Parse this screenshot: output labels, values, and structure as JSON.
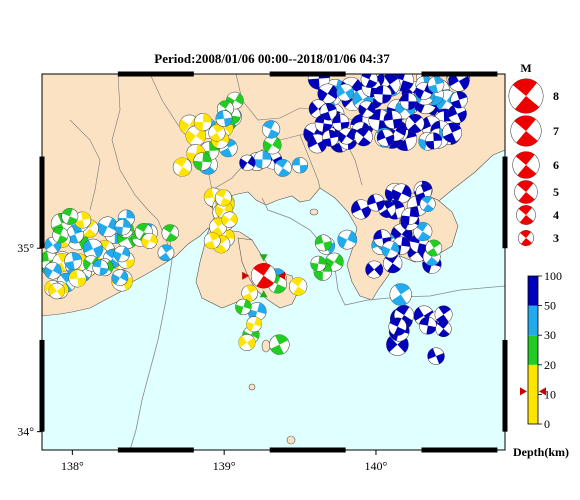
{
  "map": {
    "title": "Period:2008/01/06 00:00--2018/01/06 04:37",
    "lon_range": [
      137.8,
      140.85
    ],
    "lat_range": [
      33.9,
      35.95
    ],
    "lon_ticks": [
      {
        "value": 138,
        "label": "138°"
      },
      {
        "value": 139,
        "label": "139°"
      },
      {
        "value": 140,
        "label": "140°"
      }
    ],
    "lat_ticks": [
      {
        "value": 35,
        "label": "35°"
      },
      {
        "value": 34,
        "label": "34°"
      }
    ],
    "land_color": "#fbe2c3",
    "sea_color": "#e0ffff"
  },
  "magnitude_legend": {
    "heading": "M",
    "items": [
      {
        "label": "8",
        "size": 8
      },
      {
        "label": "7",
        "size": 7
      },
      {
        "label": "6",
        "size": 6
      },
      {
        "label": "5",
        "size": 5
      },
      {
        "label": "4",
        "size": 4
      },
      {
        "label": "3",
        "size": 3
      }
    ]
  },
  "depth_scale": {
    "title": "Depth(km)",
    "ticks": [
      {
        "value": 100,
        "label": "100"
      },
      {
        "value": 50,
        "label": "50"
      },
      {
        "value": 30,
        "label": "30"
      },
      {
        "value": 20,
        "label": "20"
      },
      {
        "value": 10,
        "label": "10"
      },
      {
        "value": 0,
        "label": "0"
      }
    ],
    "bands": [
      {
        "from": 0,
        "to": 10,
        "color": "#ffe400"
      },
      {
        "from": 10,
        "to": 20,
        "color": "#ffe400"
      },
      {
        "from": 20,
        "to": 30,
        "color": "#22cc22"
      },
      {
        "from": 30,
        "to": 50,
        "color": "#22aaee"
      },
      {
        "from": 50,
        "to": 100,
        "color": "#0000bb"
      }
    ],
    "marker_depth": 10
  },
  "main_event": {
    "lon": 139.26,
    "lat": 34.85,
    "depth": 10,
    "mag": 5.5
  },
  "clusters": [
    {
      "lon": 138.12,
      "lat": 35.0,
      "dlon": 0.28,
      "dlat": 0.18,
      "n": 36,
      "depth": [
        5,
        45
      ],
      "mag": [
        3.0,
        4.6
      ]
    },
    {
      "lon": 137.95,
      "lat": 34.85,
      "dlon": 0.1,
      "dlat": 0.1,
      "n": 8,
      "depth": [
        10,
        40
      ],
      "mag": [
        3.0,
        4.2
      ]
    },
    {
      "lon": 138.55,
      "lat": 35.05,
      "dlon": 0.12,
      "dlat": 0.1,
      "n": 6,
      "depth": [
        15,
        35
      ],
      "mag": [
        3.0,
        4.0
      ]
    },
    {
      "lon": 138.85,
      "lat": 35.55,
      "dlon": 0.18,
      "dlat": 0.15,
      "n": 14,
      "depth": [
        5,
        40
      ],
      "mag": [
        3.0,
        4.3
      ]
    },
    {
      "lon": 138.98,
      "lat": 35.15,
      "dlon": 0.06,
      "dlat": 0.13,
      "n": 14,
      "depth": [
        2,
        14
      ],
      "mag": [
        3.0,
        4.0
      ]
    },
    {
      "lon": 139.08,
      "lat": 35.72,
      "dlon": 0.1,
      "dlat": 0.1,
      "n": 6,
      "depth": [
        20,
        40
      ],
      "mag": [
        3.0,
        4.0
      ]
    },
    {
      "lon": 139.3,
      "lat": 34.68,
      "dlon": 0.2,
      "dlat": 0.22,
      "n": 10,
      "depth": [
        10,
        45
      ],
      "mag": [
        3.0,
        4.2
      ]
    },
    {
      "lon": 139.85,
      "lat": 35.75,
      "dlon": 0.28,
      "dlat": 0.18,
      "n": 40,
      "depth": [
        35,
        100
      ],
      "mag": [
        3.2,
        5.0
      ]
    },
    {
      "lon": 140.35,
      "lat": 35.75,
      "dlon": 0.22,
      "dlat": 0.2,
      "n": 34,
      "depth": [
        35,
        100
      ],
      "mag": [
        3.2,
        5.2
      ]
    },
    {
      "lon": 140.15,
      "lat": 35.1,
      "dlon": 0.25,
      "dlat": 0.22,
      "n": 26,
      "depth": [
        25,
        100
      ],
      "mag": [
        3.0,
        4.5
      ]
    },
    {
      "lon": 140.3,
      "lat": 34.55,
      "dlon": 0.16,
      "dlat": 0.2,
      "n": 12,
      "depth": [
        35,
        100
      ],
      "mag": [
        3.0,
        5.0
      ]
    },
    {
      "lon": 139.7,
      "lat": 34.95,
      "dlon": 0.12,
      "dlat": 0.1,
      "n": 6,
      "depth": [
        20,
        40
      ],
      "mag": [
        3.0,
        4.0
      ]
    },
    {
      "lon": 139.35,
      "lat": 35.55,
      "dlon": 0.2,
      "dlat": 0.12,
      "n": 8,
      "depth": [
        20,
        60
      ],
      "mag": [
        3.0,
        4.2
      ]
    }
  ]
}
